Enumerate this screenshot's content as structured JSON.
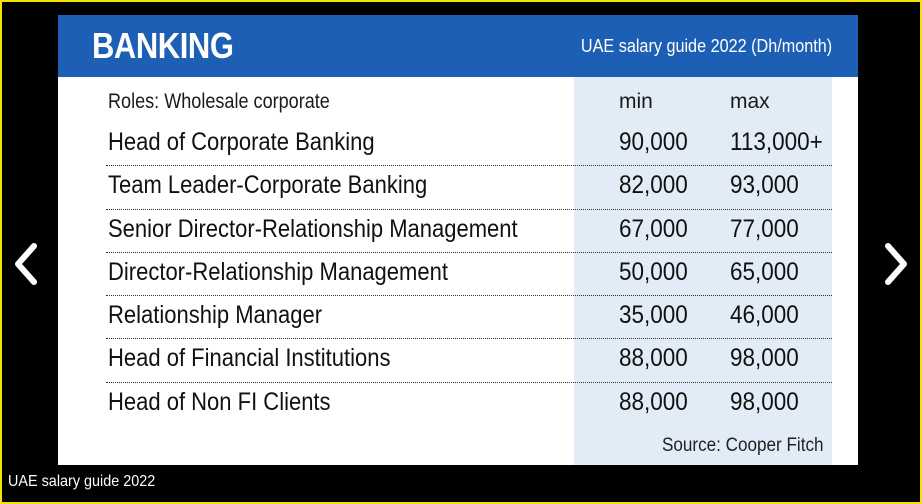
{
  "banner": {
    "title": "BANKING",
    "subtitle": "UAE salary guide 2022 (Dh/month)",
    "color": "#1e5fb6"
  },
  "table": {
    "columns": {
      "role": "Roles: Wholesale corporate",
      "min": "min",
      "max": "max"
    },
    "rows": [
      {
        "role": "Head of Corporate Banking",
        "min": "90,000",
        "max": "113,000+"
      },
      {
        "role": "Team Leader-Corporate Banking",
        "min": "82,000",
        "max": "93,000"
      },
      {
        "role": "Senior Director-Relationship Management",
        "min": "67,000",
        "max": "77,000"
      },
      {
        "role": "Director-Relationship Management",
        "min": "50,000",
        "max": "65,000"
      },
      {
        "role": "Relationship Manager",
        "min": "35,000",
        "max": "46,000"
      },
      {
        "role": "Head of Financial Institutions",
        "min": "88,000",
        "max": "98,000"
      },
      {
        "role": "Head of Non FI Clients",
        "min": "88,000",
        "max": "98,000"
      }
    ],
    "source": "Source: Cooper Fitch",
    "shade_color": "#e1ecf6"
  },
  "gallery": {
    "caption": "UAE salary guide 2022",
    "prev_icon": "chevron-left-icon",
    "next_icon": "chevron-right-icon",
    "frame_color": "#f2e600"
  }
}
